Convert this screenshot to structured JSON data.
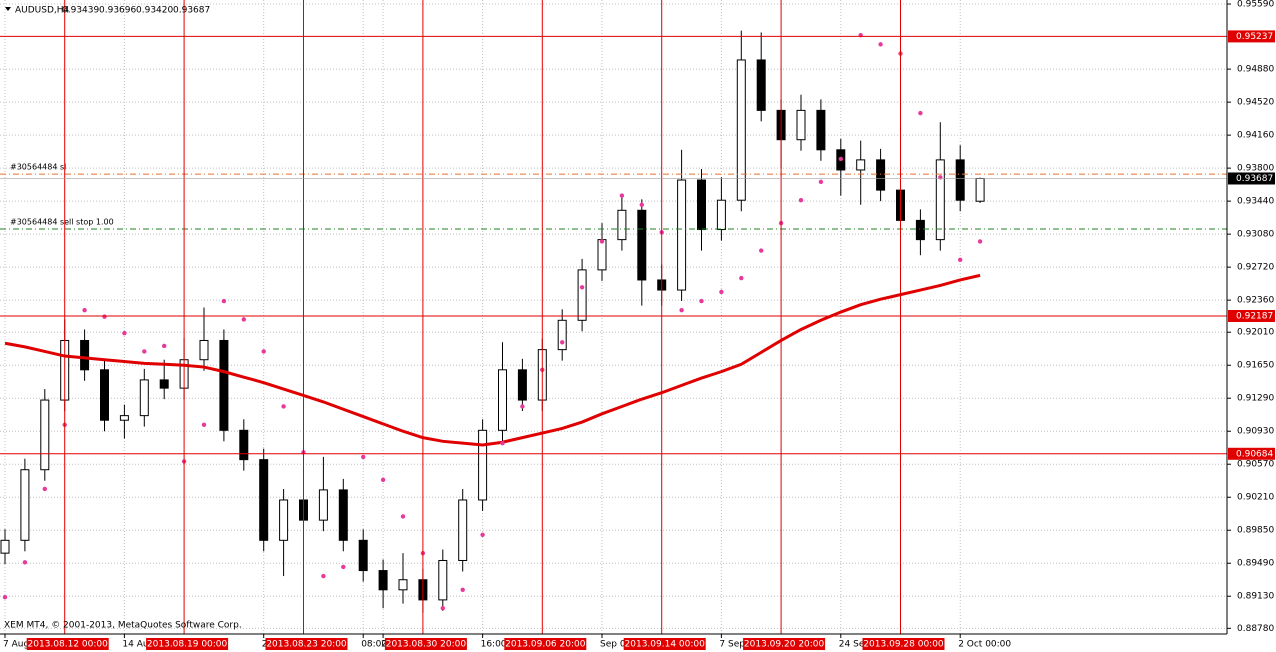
{
  "header": {
    "symbol": "AUDUSD,H4",
    "ohlc": [
      "0.93439",
      "0.93696",
      "0.93420",
      "0.93687"
    ]
  },
  "copyright": "XEM MT4, © 2001-2013, MetaQuotes Software Corp.",
  "chart_data": {
    "type": "candlestick",
    "ylim": [
      0.88718,
      0.95634
    ],
    "yticks": [
      {
        "value": 0.9559,
        "label": "0.95590"
      },
      {
        "value": 0.9488,
        "label": "0.94880"
      },
      {
        "value": 0.9452,
        "label": "0.94520"
      },
      {
        "value": 0.9416,
        "label": "0.94160"
      },
      {
        "value": 0.938,
        "label": "0.93800"
      },
      {
        "value": 0.9344,
        "label": "0.93440"
      },
      {
        "value": 0.9308,
        "label": "0.93080"
      },
      {
        "value": 0.9272,
        "label": "0.92720"
      },
      {
        "value": 0.9236,
        "label": "0.92360"
      },
      {
        "value": 0.9201,
        "label": "0.92010"
      },
      {
        "value": 0.9165,
        "label": "0.91650"
      },
      {
        "value": 0.9129,
        "label": "0.91290"
      },
      {
        "value": 0.9093,
        "label": "0.90930"
      },
      {
        "value": 0.9057,
        "label": "0.90570"
      },
      {
        "value": 0.9021,
        "label": "0.90210"
      },
      {
        "value": 0.8985,
        "label": "0.89850"
      },
      {
        "value": 0.8949,
        "label": "0.89490"
      },
      {
        "value": 0.8913,
        "label": "0.89130"
      },
      {
        "value": 0.8878,
        "label": "0.88780"
      }
    ],
    "grid": true,
    "candle_color": "#000000",
    "open": [
      0.896,
      0.8974,
      0.9051,
      0.9127,
      0.9192,
      0.916,
      0.9105,
      0.911,
      0.9149,
      0.914,
      0.9171,
      0.9192,
      0.9094,
      0.9062,
      0.8974,
      0.9018,
      0.8996,
      0.9029,
      0.8974,
      0.8941,
      0.892,
      0.8931,
      0.8909,
      0.8952,
      0.9018,
      0.9094,
      0.916,
      0.9127,
      0.9182,
      0.9214,
      0.9269,
      0.9302,
      0.9334,
      0.9258,
      0.9247,
      0.9367,
      0.9313,
      0.9345,
      0.9498,
      0.9443,
      0.9411,
      0.9443,
      0.94,
      0.9378,
      0.9389,
      0.9356,
      0.9323,
      0.9302,
      0.9389,
      0.93439
    ],
    "high": [
      0.8986,
      0.9063,
      0.9139,
      0.9215,
      0.9204,
      0.9172,
      0.9122,
      0.9161,
      0.9171,
      0.9195,
      0.9228,
      0.9204,
      0.9106,
      0.9074,
      0.903,
      0.906,
      0.9065,
      0.9041,
      0.8986,
      0.8953,
      0.896,
      0.8943,
      0.8964,
      0.903,
      0.9106,
      0.919,
      0.9172,
      0.9194,
      0.9226,
      0.9281,
      0.932,
      0.9352,
      0.9346,
      0.9275,
      0.94,
      0.9379,
      0.937,
      0.953,
      0.9528,
      0.9455,
      0.946,
      0.9455,
      0.9412,
      0.941,
      0.9401,
      0.9368,
      0.9335,
      0.943,
      0.9405,
      0.93696
    ],
    "low": [
      0.8948,
      0.8962,
      0.9039,
      0.9115,
      0.9148,
      0.9093,
      0.9085,
      0.9098,
      0.9128,
      0.9128,
      0.9159,
      0.9082,
      0.905,
      0.8962,
      0.8935,
      0.8984,
      0.8984,
      0.8962,
      0.8929,
      0.89,
      0.8905,
      0.8895,
      0.8897,
      0.894,
      0.9006,
      0.9082,
      0.9115,
      0.9115,
      0.917,
      0.9202,
      0.9257,
      0.929,
      0.923,
      0.923,
      0.9235,
      0.929,
      0.9301,
      0.9333,
      0.9431,
      0.938,
      0.9399,
      0.9388,
      0.935,
      0.934,
      0.9344,
      0.9311,
      0.9285,
      0.929,
      0.9333,
      0.9342
    ],
    "close": [
      0.8974,
      0.9051,
      0.9127,
      0.9192,
      0.916,
      0.9105,
      0.911,
      0.9149,
      0.914,
      0.9171,
      0.9192,
      0.9094,
      0.9062,
      0.8974,
      0.9018,
      0.8996,
      0.9029,
      0.8974,
      0.8941,
      0.892,
      0.8931,
      0.8909,
      0.8952,
      0.9018,
      0.9094,
      0.916,
      0.9127,
      0.9182,
      0.9214,
      0.9269,
      0.9302,
      0.9334,
      0.9258,
      0.9247,
      0.9367,
      0.9313,
      0.9345,
      0.9498,
      0.9443,
      0.9411,
      0.9443,
      0.94,
      0.9378,
      0.9389,
      0.9356,
      0.9323,
      0.9302,
      0.9389,
      0.9345,
      0.93687
    ],
    "ma": {
      "color": "#e00000",
      "values": [
        0.9189,
        0.9185,
        0.918,
        0.9175,
        0.9173,
        0.9171,
        0.9169,
        0.9167,
        0.9166,
        0.9165,
        0.9163,
        0.9158,
        0.9152,
        0.9146,
        0.9139,
        0.9132,
        0.9125,
        0.9117,
        0.9109,
        0.9101,
        0.9093,
        0.9086,
        0.9082,
        0.908,
        0.9078,
        0.9081,
        0.9086,
        0.9091,
        0.9096,
        0.9103,
        0.9112,
        0.912,
        0.9128,
        0.9135,
        0.9143,
        0.9151,
        0.9158,
        0.9166,
        0.9179,
        0.9192,
        0.9204,
        0.9214,
        0.9223,
        0.9231,
        0.9237,
        0.9242,
        0.9247,
        0.9252,
        0.9258,
        0.9263
      ]
    },
    "sar": {
      "color": "#e8389a",
      "values": [
        0.8912,
        0.895,
        0.903,
        0.91,
        0.9225,
        0.9218,
        0.92,
        0.918,
        0.9186,
        0.906,
        0.91,
        0.9235,
        0.9215,
        0.918,
        0.912,
        0.907,
        0.8935,
        0.8945,
        0.9065,
        0.904,
        0.9,
        0.896,
        0.89,
        0.892,
        0.898,
        0.908,
        0.912,
        0.916,
        0.919,
        0.925,
        0.93,
        0.935,
        0.934,
        0.931,
        0.9225,
        0.9235,
        0.9245,
        0.926,
        0.929,
        0.932,
        0.9345,
        0.9365,
        0.939,
        0.9525,
        0.9515,
        0.9505,
        0.944,
        0.937,
        0.928,
        0.93
      ]
    },
    "levels": [
      {
        "value": 0.95237,
        "label": "0.95237"
      },
      {
        "value": 0.92187,
        "label": "0.92187"
      },
      {
        "value": 0.90684,
        "label": "0.90684"
      }
    ],
    "level_color": "#e00000",
    "price": {
      "value": 0.93687,
      "label": "0.93687"
    },
    "orders": [
      {
        "value": 0.93735,
        "label": "#30564484 sl",
        "color": "#e87030"
      },
      {
        "value": 0.93136,
        "label": "#30564484 sell stop 1.00",
        "color": "#208020"
      }
    ],
    "vlines": [
      {
        "index": 3,
        "label": "2013.08.12 00:00"
      },
      {
        "index": 9,
        "label": "2013.08.19 00:00"
      },
      {
        "index": 15,
        "label": "2013.08.23 20:00"
      },
      {
        "index": 21,
        "label": "2013.08.30 20:00"
      },
      {
        "index": 27,
        "label": "2013.09.06 20:00"
      },
      {
        "index": 33,
        "label": "2013.09.14 00:00"
      },
      {
        "index": 39,
        "label": "2013.09.20 20:00"
      },
      {
        "index": 45,
        "label": "2013.09.28 00:00"
      }
    ],
    "time_labels": [
      {
        "index": 0,
        "label": "7 Aug 2"
      },
      {
        "index": 6,
        "label": "14 Au"
      },
      {
        "index": 13,
        "label": "21"
      },
      {
        "index": 18,
        "label": "08:00"
      },
      {
        "index": 19,
        "label": "2"
      },
      {
        "index": 24,
        "label": "16:00"
      },
      {
        "index": 30,
        "label": "Sep 00:00"
      },
      {
        "index": 36,
        "label": "7 Sep 08:"
      },
      {
        "index": 42,
        "label": "24 Sep 1"
      },
      {
        "index": 48,
        "label": "2 Oct 00:00"
      }
    ]
  }
}
